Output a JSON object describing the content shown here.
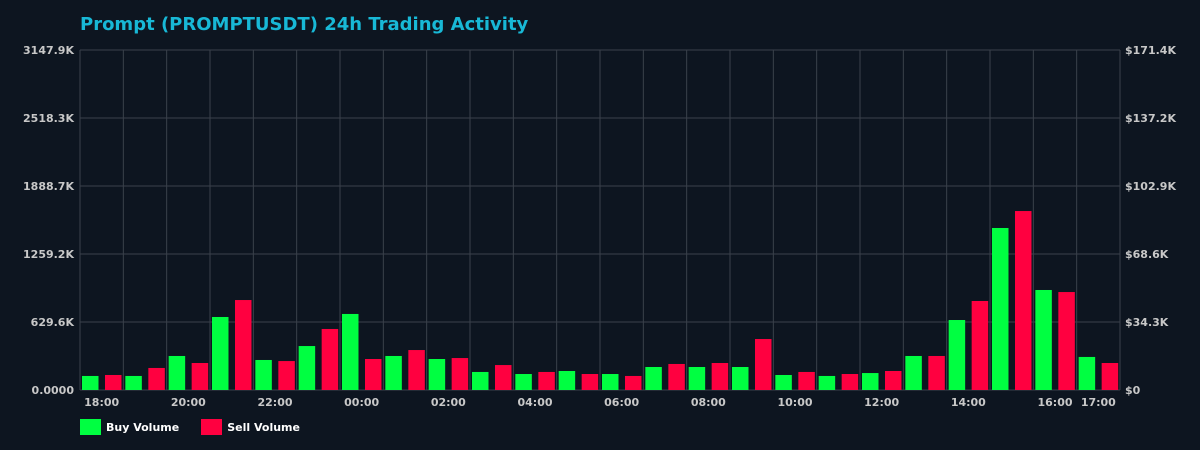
{
  "colors": {
    "background": "#0d1520",
    "title": "#18b8d6",
    "buy": "#00ff41",
    "sell": "#ff0040",
    "grid": "#3a414b",
    "tick": "#c8c8c8"
  },
  "chart_data": {
    "type": "bar",
    "title": "Prompt (PROMPTUSDT) 24h Trading Activity",
    "categories": [
      "18:00",
      "19:00",
      "20:00",
      "21:00",
      "22:00",
      "23:00",
      "00:00",
      "01:00",
      "02:00",
      "03:00",
      "04:00",
      "05:00",
      "06:00",
      "07:00",
      "08:00",
      "09:00",
      "10:00",
      "11:00",
      "12:00",
      "13:00",
      "14:00",
      "15:00",
      "16:00",
      "17:00"
    ],
    "x_tick_labels": [
      "18:00",
      "20:00",
      "22:00",
      "00:00",
      "02:00",
      "04:00",
      "06:00",
      "08:00",
      "10:00",
      "12:00",
      "14:00",
      "16:00",
      "17:00"
    ],
    "series": [
      {
        "name": "Buy Volume",
        "color": "#00ff41",
        "values": [
          130,
          130,
          315,
          676,
          278,
          407,
          704,
          315,
          287,
          167,
          148,
          176,
          148,
          213,
          213,
          213,
          139,
          130,
          157,
          315,
          648,
          1500,
          926,
          306
        ]
      },
      {
        "name": "Sell Volume",
        "color": "#ff0040",
        "values": [
          139,
          204,
          250,
          833,
          268,
          565,
          287,
          370,
          296,
          231,
          167,
          148,
          130,
          241,
          250,
          472,
          167,
          148,
          176,
          315,
          824,
          1657,
          907,
          250
        ]
      }
    ],
    "value_unit": "K",
    "ylim": [
      0,
      3147.9
    ],
    "y_tick_labels_left": [
      "0.0000",
      "629.6K",
      "1259.2K",
      "1888.7K",
      "2518.3K",
      "3147.9K"
    ],
    "y2lim_usd_k": [
      0,
      171.4
    ],
    "y_tick_labels_right": [
      "$0",
      "$34.3K",
      "$68.6K",
      "$102.9K",
      "$137.2K",
      "$171.4K"
    ],
    "grid": true,
    "legend_position": "bottom-left"
  }
}
